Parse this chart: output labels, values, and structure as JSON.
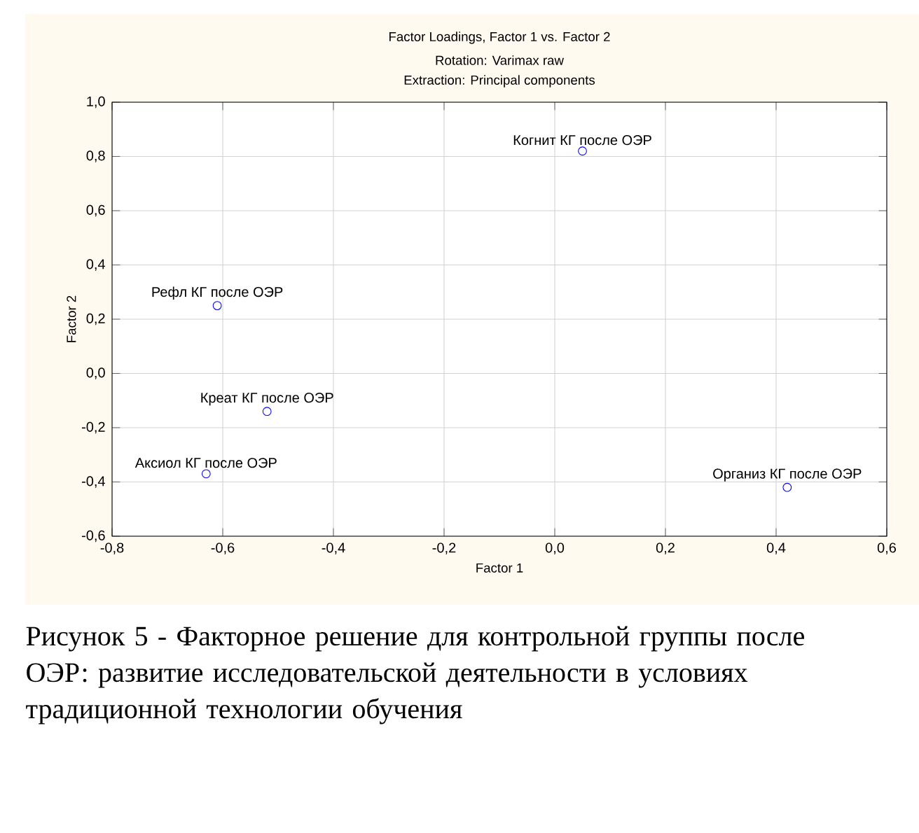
{
  "chart_data": {
    "type": "scatter",
    "title": "Factor Loadings, Factor 1 vs. Factor 2",
    "subtitle": "Rotation: Varimax raw",
    "annotations": [
      "Extraction: Principal components",
      {
        "text": "Когнит КГ после ОЭР",
        "x": 0.05,
        "y": 0.82
      },
      {
        "text": "Рефл КГ после ОЭР",
        "x": -0.61,
        "y": 0.25
      },
      {
        "text": "Креат КГ после ОЭР",
        "x": -0.52,
        "y": -0.14
      },
      {
        "text": "Аксиол КГ после ОЭР",
        "x": -0.63,
        "y": -0.37
      },
      {
        "text": "Организ КГ после ОЭР",
        "x": 0.42,
        "y": -0.42
      },
      "Рисунок 5 - Факторное решение для контрольной группы после ОЭР: развитие исследовательской деятельности в условиях традиционной технологии обучения"
    ],
    "xlabel": "Factor 1",
    "ylabel": "Factor 2",
    "x": [
      0.05,
      -0.61,
      -0.52,
      -0.63,
      0.42
    ],
    "values": [
      0.82,
      0.25,
      -0.14,
      -0.37,
      -0.42
    ],
    "color": "#0000ff",
    "marker": "circle",
    "grid": true,
    "xlim": [
      -0.8,
      0.6
    ],
    "ylim": [
      -0.6,
      1.0
    ],
    "xticks": [
      {
        "value": -0.8,
        "label": "-0,8"
      },
      {
        "value": -0.6,
        "label": "-0,6"
      },
      {
        "value": -0.4,
        "label": "-0,4"
      },
      {
        "value": -0.2,
        "label": "-0,2"
      },
      {
        "value": 0.0,
        "label": "0,0"
      },
      {
        "value": 0.2,
        "label": "0,2"
      },
      {
        "value": 0.4,
        "label": "0,4"
      },
      {
        "value": 0.6,
        "label": "0,6"
      }
    ],
    "yticks": [
      {
        "value": -0.6,
        "label": "-0,6"
      },
      {
        "value": -0.4,
        "label": "-0,4"
      },
      {
        "value": -0.2,
        "label": "-0,2"
      },
      {
        "value": 0.0,
        "label": "0,0"
      },
      {
        "value": 0.2,
        "label": "0,2"
      },
      {
        "value": 0.4,
        "label": "0,4"
      },
      {
        "value": 0.6,
        "label": "0,6"
      },
      {
        "value": 0.8,
        "label": "0,8"
      },
      {
        "value": 1.0,
        "label": "1,0"
      }
    ]
  }
}
